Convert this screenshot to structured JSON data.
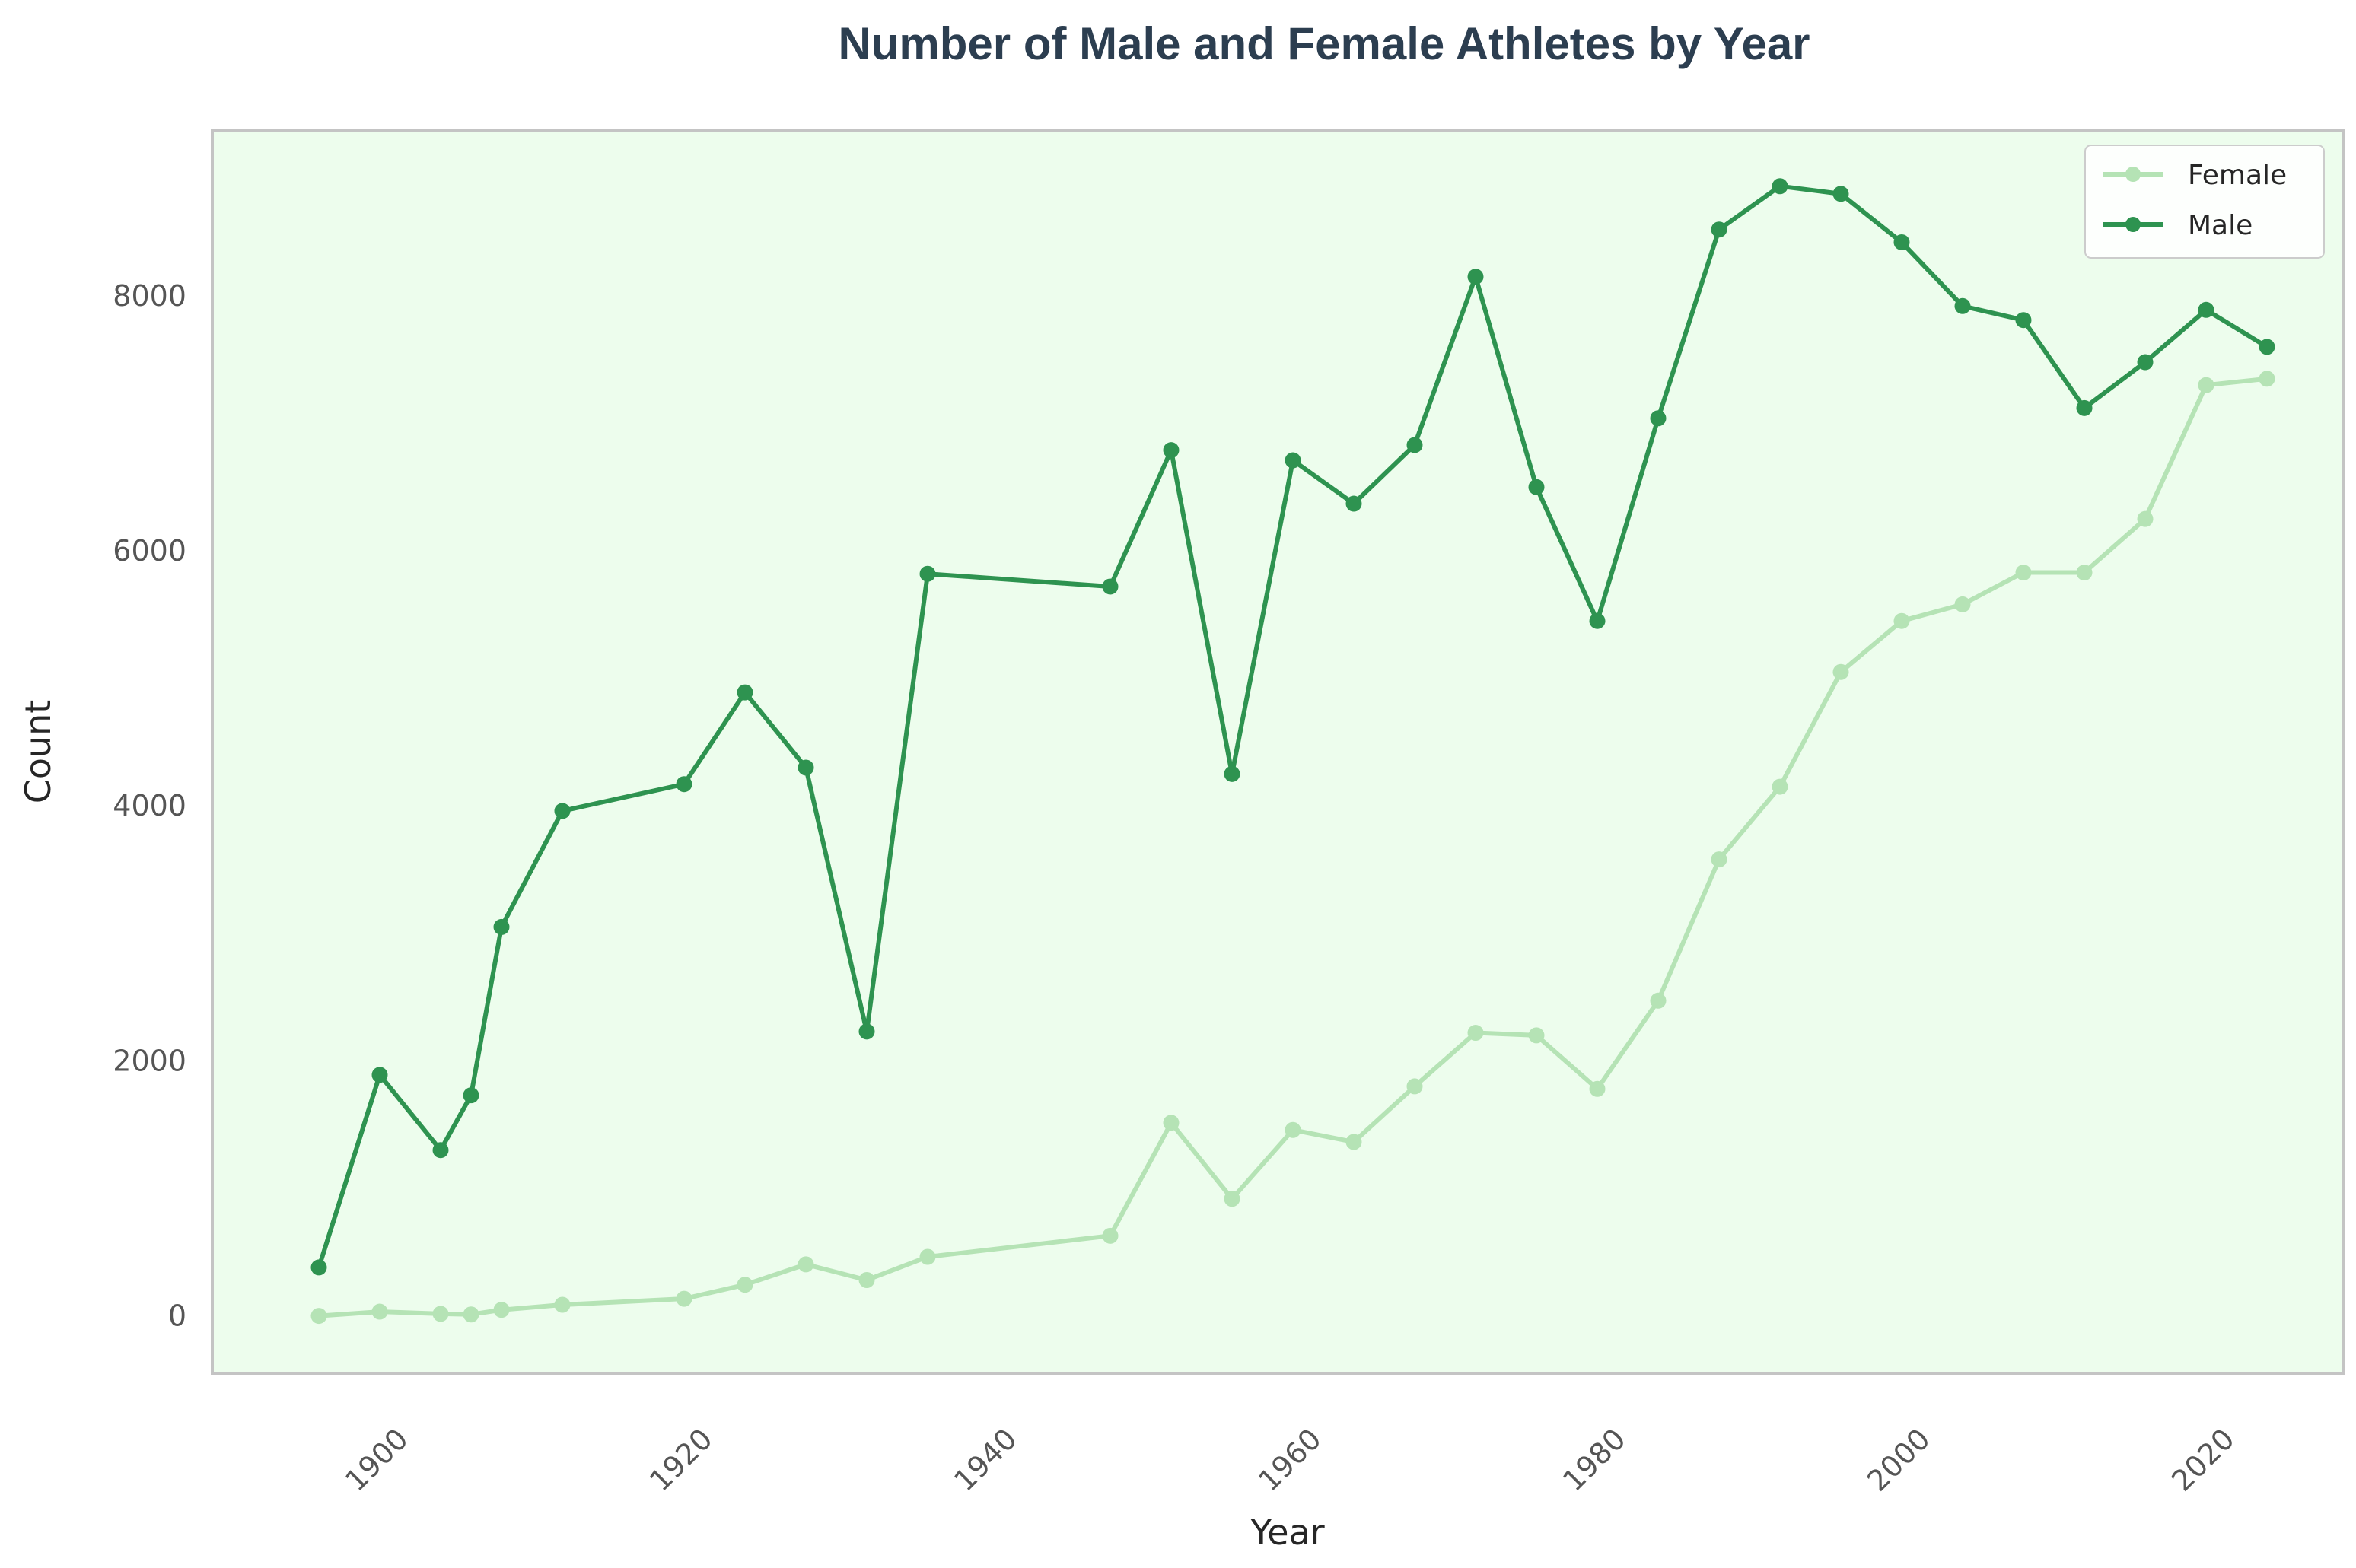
{
  "chart_data": {
    "type": "line",
    "title": "Number of Male and Female Athletes by Year",
    "xlabel": "Year",
    "ylabel": "Count",
    "xlim": [
      1889,
      2029
    ],
    "ylim": [
      -450,
      9300
    ],
    "xticks": [
      1900,
      1920,
      1940,
      1960,
      1980,
      2000,
      2020
    ],
    "yticks": [
      0,
      2000,
      4000,
      6000,
      8000
    ],
    "grid": false,
    "legend_position": "top-right",
    "background_color": "#edfded",
    "x": [
      1896,
      1900,
      1904,
      1906,
      1908,
      1912,
      1920,
      1924,
      1928,
      1932,
      1936,
      1948,
      1952,
      1956,
      1960,
      1964,
      1968,
      1972,
      1976,
      1980,
      1984,
      1988,
      1992,
      1996,
      2000,
      2004,
      2008,
      2012,
      2016,
      2020,
      2024
    ],
    "series": [
      {
        "name": "Female",
        "color": "#b5e3b5",
        "values": [
          0,
          33,
          16,
          11,
          47,
          87,
          134,
          244,
          404,
          281,
          463,
          628,
          1514,
          918,
          1458,
          1364,
          1800,
          2220,
          2200,
          1780,
          2472,
          3580,
          4150,
          5050,
          5450,
          5580,
          5830,
          5830,
          6250,
          7300,
          7350
        ]
      },
      {
        "name": "Male",
        "color": "#2e9350",
        "values": [
          380,
          1890,
          1300,
          1730,
          3050,
          3960,
          4170,
          4890,
          4300,
          2230,
          5820,
          5720,
          6790,
          4250,
          6710,
          6370,
          6830,
          8150,
          6500,
          5450,
          7040,
          8520,
          8860,
          8800,
          8420,
          7920,
          7810,
          7120,
          7480,
          7890,
          7600
        ]
      }
    ]
  }
}
